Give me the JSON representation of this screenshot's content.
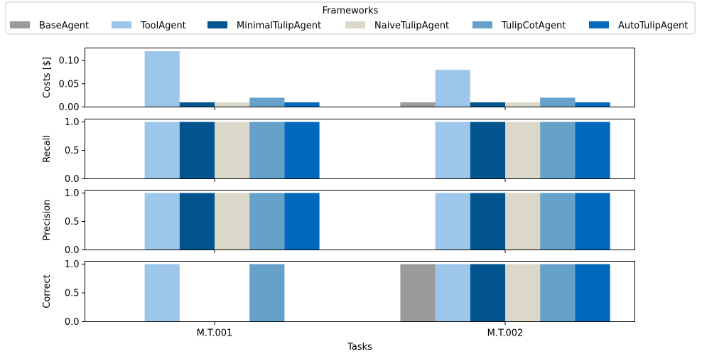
{
  "chart_data": {
    "type": "bar",
    "categories": [
      "M.T.001",
      "M.T.002"
    ],
    "xlabel": "Tasks",
    "legend": {
      "title": "Frameworks",
      "placement": "top"
    },
    "series": [
      {
        "name": "BaseAgent",
        "color": "#9b9b9b"
      },
      {
        "name": "ToolAgent",
        "color": "#9cc7ea"
      },
      {
        "name": "MinimalTulipAgent",
        "color": "#02548f"
      },
      {
        "name": "NaiveTulipAgent",
        "color": "#dbd8ca"
      },
      {
        "name": "TulipCotAgent",
        "color": "#66a1ca"
      },
      {
        "name": "AutoTulipAgent",
        "color": "#0068bd"
      }
    ],
    "panels": [
      {
        "ylabel": "Costs [$]",
        "ylim": [
          0,
          0.127
        ],
        "yticks": [
          0.0,
          0.05,
          0.1
        ],
        "ytick_labels": [
          "0.00",
          "0.05",
          "0.10"
        ],
        "values": [
          [
            0,
            0.01
          ],
          [
            0.12,
            0.08
          ],
          [
            0.01,
            0.01
          ],
          [
            0.01,
            0.01
          ],
          [
            0.02,
            0.02
          ],
          [
            0.01,
            0.01
          ]
        ]
      },
      {
        "ylabel": "Recall",
        "ylim": [
          0,
          1.05
        ],
        "yticks": [
          0.0,
          0.5,
          1.0
        ],
        "ytick_labels": [
          "0.0",
          "0.5",
          "1.0"
        ],
        "values": [
          [
            0,
            0
          ],
          [
            1,
            1
          ],
          [
            1,
            1
          ],
          [
            1,
            1
          ],
          [
            1,
            1
          ],
          [
            1,
            1
          ]
        ]
      },
      {
        "ylabel": "Precision",
        "ylim": [
          0,
          1.05
        ],
        "yticks": [
          0.0,
          0.5,
          1.0
        ],
        "ytick_labels": [
          "0.0",
          "0.5",
          "1.0"
        ],
        "values": [
          [
            0,
            0
          ],
          [
            1,
            1
          ],
          [
            1,
            1
          ],
          [
            1,
            1
          ],
          [
            1,
            1
          ],
          [
            1,
            1
          ]
        ]
      },
      {
        "ylabel": "Correct",
        "ylim": [
          0,
          1.05
        ],
        "yticks": [
          0.0,
          0.5,
          1.0
        ],
        "ytick_labels": [
          "0.0",
          "0.5",
          "1.0"
        ],
        "values": [
          [
            0,
            1
          ],
          [
            1,
            1
          ],
          [
            0,
            1
          ],
          [
            0,
            1
          ],
          [
            1,
            1
          ],
          [
            0,
            1
          ]
        ]
      }
    ],
    "grid": false
  }
}
